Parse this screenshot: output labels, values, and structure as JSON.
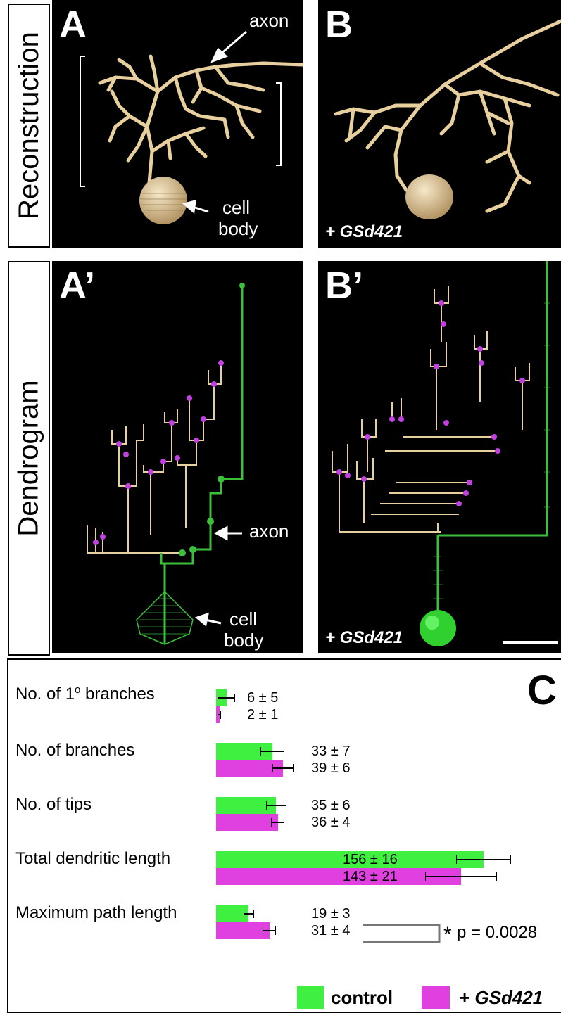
{
  "rows": {
    "top_label": "Reconstruction",
    "bottom_label": "Dendrogram"
  },
  "panels": {
    "A": {
      "label": "A",
      "axon": "axon",
      "cell": "cell",
      "body": "body"
    },
    "B": {
      "label": "B",
      "condition": "+ GSd421"
    },
    "A_prime": {
      "label": "A’",
      "axon": "axon",
      "cell": "cell",
      "body": "body"
    },
    "B_prime": {
      "label": "B’",
      "condition": "+ GSd421"
    }
  },
  "colors": {
    "control": "#40f040",
    "gsd421": "#e040e0",
    "neuron": "#e8cf9e",
    "axon_green": "#3cc03c"
  },
  "chart_data": {
    "type": "bar",
    "panel_label": "C",
    "orientation": "horizontal",
    "categories": [
      "No. of 1° branches",
      "No. of branches",
      "No. of tips",
      "Total dendritic length",
      "Maximum path length"
    ],
    "series": [
      {
        "name": "control",
        "values": [
          6,
          33,
          35,
          156,
          19
        ],
        "errors": [
          5,
          7,
          6,
          16,
          3
        ],
        "value_labels": [
          "6 ± 5",
          "33 ± 7",
          "35 ± 6",
          "156 ± 16",
          "19 ± 3"
        ]
      },
      {
        "name": "+ GSd421",
        "values": [
          2,
          39,
          36,
          143,
          31
        ],
        "errors": [
          1,
          6,
          4,
          21,
          4
        ],
        "value_labels": [
          "2 ± 1",
          "39 ± 6",
          "36 ± 4",
          "143 ± 21",
          "31 ± 4"
        ]
      }
    ],
    "category_text": {
      "first_prefix": "No. of 1",
      "first_sup": "o",
      "first_suffix": " branches"
    },
    "significance": {
      "star": "*",
      "text": "p = 0.0028"
    },
    "grid": false,
    "legend_position": "bottom-right"
  }
}
